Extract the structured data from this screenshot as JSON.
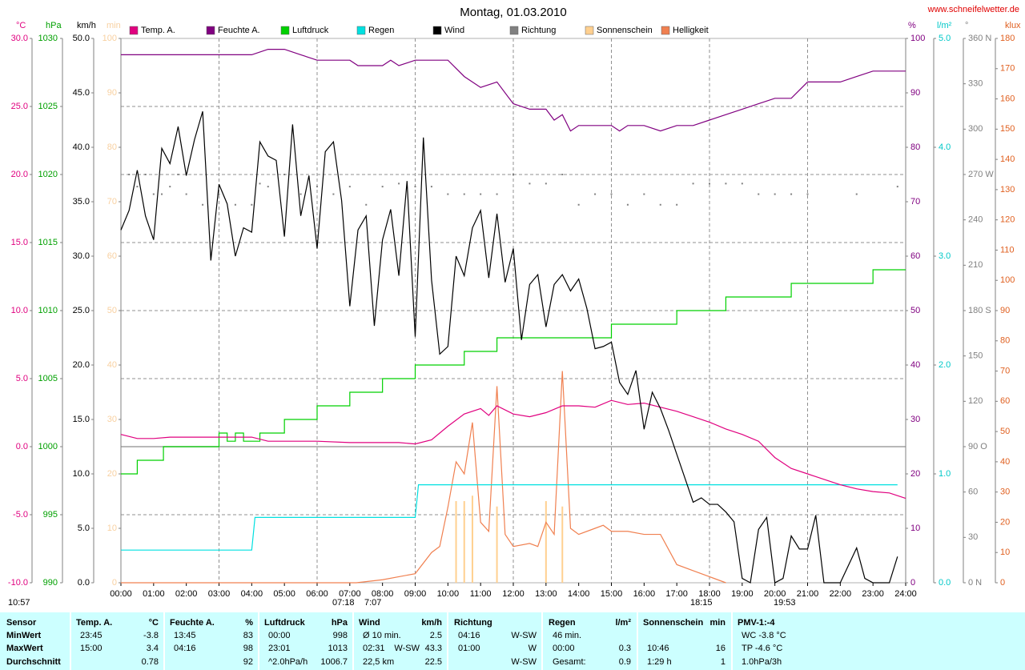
{
  "chart_data": {
    "type": "line",
    "title": "Montag, 01.03.2010",
    "source": "www.schneifelwetter.de",
    "xlim": [
      0,
      24
    ],
    "xticks": [
      {
        "value": 0,
        "label": "00:00"
      },
      {
        "value": 1,
        "label": "01:00"
      },
      {
        "value": 2,
        "label": "02:00"
      },
      {
        "value": 3,
        "label": "03:00"
      },
      {
        "value": 4,
        "label": "04:00"
      },
      {
        "value": 5,
        "label": "05:00"
      },
      {
        "value": 6,
        "label": "06:00"
      },
      {
        "value": 7,
        "label": "07:00"
      },
      {
        "value": 8,
        "label": "08:00"
      },
      {
        "value": 9,
        "label": "09:00"
      },
      {
        "value": 10,
        "label": "10:00"
      },
      {
        "value": 11,
        "label": "11:00"
      },
      {
        "value": 12,
        "label": "12:00"
      },
      {
        "value": 13,
        "label": "13:00"
      },
      {
        "value": 14,
        "label": "14:00"
      },
      {
        "value": 15,
        "label": "15:00"
      },
      {
        "value": 16,
        "label": "16:00"
      },
      {
        "value": 17,
        "label": "17:00"
      },
      {
        "value": 18,
        "label": "18:00"
      },
      {
        "value": 19,
        "label": "19:00"
      },
      {
        "value": 20,
        "label": "20:00"
      },
      {
        "value": 21,
        "label": "21:00"
      },
      {
        "value": 22,
        "label": "22:00"
      },
      {
        "value": 23,
        "label": "23:00"
      },
      {
        "value": 24,
        "label": "24:00"
      }
    ],
    "grid": {
      "axis": 0,
      "x_every": 3,
      "zero_line": true
    },
    "axes": [
      {
        "unit": "°C",
        "color": "#e0007f",
        "lim": [
          -10,
          30
        ],
        "ticks": [
          {
            "value": 30,
            "label": "30.0"
          },
          {
            "value": 25,
            "label": "25.0"
          },
          {
            "value": 20,
            "label": "20.0"
          },
          {
            "value": 15,
            "label": "15.0"
          },
          {
            "value": 10,
            "label": "10.0"
          },
          {
            "value": 5,
            "label": "5.0"
          },
          {
            "value": 0,
            "label": "0.0"
          },
          {
            "value": -5,
            "label": "-5.0"
          },
          {
            "value": -10,
            "label": "-10.0"
          }
        ]
      },
      {
        "unit": "hPa",
        "color": "#00a000",
        "lim": [
          990,
          1030
        ],
        "ticks": [
          1030,
          1025,
          1020,
          1015,
          1010,
          1005,
          1000,
          995,
          990
        ]
      },
      {
        "unit": "km/h",
        "color": "#000000",
        "lim": [
          0,
          50
        ],
        "ticks": [
          {
            "value": 50,
            "label": "50.0"
          },
          {
            "value": 45,
            "label": "45.0"
          },
          {
            "value": 40,
            "label": "40.0"
          },
          {
            "value": 35,
            "label": "35.0"
          },
          {
            "value": 30,
            "label": "30.0"
          },
          {
            "value": 25,
            "label": "25.0"
          },
          {
            "value": 20,
            "label": "20.0"
          },
          {
            "value": 15,
            "label": "15.0"
          },
          {
            "value": 10,
            "label": "10.0"
          },
          {
            "value": 5,
            "label": "5.0"
          },
          {
            "value": 0,
            "label": "0.0"
          }
        ]
      },
      {
        "unit": "min",
        "color": "#f8d0a0",
        "lim": [
          0,
          100
        ],
        "ticks": [
          100,
          90,
          80,
          70,
          60,
          50,
          40,
          30,
          20,
          10,
          0
        ]
      },
      {
        "unit": "%",
        "color": "#800080",
        "lim": [
          0,
          100
        ],
        "ticks": [
          100,
          90,
          80,
          70,
          60,
          50,
          40,
          30,
          20,
          10,
          0
        ]
      },
      {
        "unit": "l/m²",
        "color": "#00c8c8",
        "lim": [
          0,
          5
        ],
        "ticks": [
          {
            "value": 5,
            "label": "5.0"
          },
          {
            "value": 4,
            "label": "4.0"
          },
          {
            "value": 3,
            "label": "3.0"
          },
          {
            "value": 2,
            "label": "2.0"
          },
          {
            "value": 1,
            "label": "1.0"
          },
          {
            "value": 0,
            "label": "0.0"
          }
        ]
      },
      {
        "unit": "°",
        "color": "#808080",
        "lim": [
          0,
          360
        ],
        "ticks": [
          {
            "value": 360,
            "label": "360 N"
          },
          330,
          300,
          {
            "value": 270,
            "label": "270 W"
          },
          240,
          210,
          {
            "value": 180,
            "label": "180 S"
          },
          150,
          120,
          {
            "value": 90,
            "label": "90 O"
          },
          60,
          30,
          {
            "value": 0,
            "label": "0 N"
          }
        ]
      },
      {
        "unit": "klux",
        "color": "#e06020",
        "lim": [
          0,
          180
        ],
        "ticks": [
          180,
          170,
          160,
          150,
          140,
          130,
          120,
          110,
          100,
          90,
          80,
          70,
          60,
          50,
          40,
          30,
          20,
          10,
          0
        ]
      }
    ],
    "series": [
      {
        "name": "Temp. A.",
        "color": "#e0007f",
        "axis": 0,
        "style": "line",
        "x": [
          0,
          0.5,
          1,
          1.5,
          2,
          3,
          4,
          4.5,
          5,
          6,
          7,
          8,
          8.5,
          9,
          9.5,
          10,
          10.5,
          11,
          11.25,
          11.5,
          12,
          12.5,
          13,
          13.5,
          14,
          14.5,
          15,
          15.5,
          16,
          16.5,
          17,
          17.5,
          18,
          18.5,
          19,
          19.5,
          20,
          20.5,
          21,
          21.5,
          22,
          22.5,
          23,
          23.5,
          24
        ],
        "values": [
          0.9,
          0.6,
          0.6,
          0.7,
          0.7,
          0.7,
          0.7,
          0.4,
          0.4,
          0.4,
          0.3,
          0.3,
          0.3,
          0.2,
          0.5,
          1.5,
          2.4,
          2.8,
          2.3,
          3.0,
          2.4,
          2.2,
          2.5,
          3.0,
          3.0,
          2.9,
          3.4,
          3.1,
          3.2,
          2.9,
          2.6,
          2.2,
          1.8,
          1.3,
          0.9,
          0.4,
          -0.8,
          -1.6,
          -2.0,
          -2.4,
          -2.8,
          -3.1,
          -3.3,
          -3.4,
          -3.8
        ]
      },
      {
        "name": "Feuchte A.",
        "color": "#800080",
        "axis": 4,
        "style": "line",
        "x": [
          0,
          4,
          4.5,
          5,
          5.5,
          6,
          7,
          7.25,
          8,
          8.25,
          8.5,
          9,
          10,
          10.5,
          11,
          11.5,
          12,
          12.5,
          13,
          13.25,
          13.5,
          13.75,
          14,
          15,
          15.25,
          15.5,
          16,
          16.5,
          17,
          17.5,
          18,
          18.5,
          19,
          19.5,
          20,
          20.5,
          21,
          22,
          22.5,
          23,
          24
        ],
        "values": [
          97,
          97,
          98,
          98,
          97,
          96,
          96,
          95,
          95,
          96,
          95,
          96,
          96,
          93,
          91,
          92,
          88,
          87,
          87,
          85,
          86,
          83,
          84,
          84,
          83,
          84,
          84,
          83,
          84,
          84,
          85,
          86,
          87,
          88,
          89,
          89,
          92,
          92,
          93,
          94,
          94
        ]
      },
      {
        "name": "Luftdruck",
        "color": "#00d000",
        "axis": 1,
        "style": "step",
        "x": [
          0,
          0.5,
          1.3,
          3,
          3.25,
          3.5,
          3.75,
          4.25,
          5,
          6,
          7,
          8,
          9,
          10.5,
          11.5,
          15,
          17,
          18.5,
          20.5,
          23,
          24
        ],
        "values": [
          998,
          999,
          1000,
          1001,
          1000.4,
          1001,
          1000.4,
          1001,
          1002,
          1003,
          1004,
          1005,
          1006,
          1007,
          1008,
          1009,
          1010,
          1011,
          1012,
          1013,
          1013
        ]
      },
      {
        "name": "Regen",
        "color": "#00e0e0",
        "axis": 5,
        "style": "line",
        "x": [
          0,
          4,
          4.1,
          9,
          9.1,
          23.75
        ],
        "values": [
          0.3,
          0.3,
          0.6,
          0.6,
          0.9,
          0.9
        ]
      },
      {
        "name": "Wind",
        "color": "#000000",
        "axis": 2,
        "style": "line",
        "x": [
          0,
          0.25,
          0.5,
          0.75,
          1,
          1.25,
          1.5,
          1.75,
          2,
          2.25,
          2.5,
          2.75,
          3,
          3.25,
          3.5,
          3.75,
          4,
          4.25,
          4.5,
          4.75,
          5,
          5.25,
          5.5,
          5.75,
          6,
          6.25,
          6.5,
          6.75,
          7,
          7.25,
          7.5,
          7.75,
          8,
          8.25,
          8.5,
          8.75,
          9,
          9.25,
          9.5,
          9.75,
          10,
          10.25,
          10.5,
          10.75,
          11,
          11.25,
          11.5,
          11.75,
          12,
          12.25,
          12.5,
          12.75,
          13,
          13.25,
          13.5,
          13.75,
          14,
          14.25,
          14.5,
          14.75,
          15,
          15.25,
          15.5,
          15.75,
          16,
          16.25,
          16.5,
          16.75,
          17,
          17.25,
          17.5,
          17.75,
          18,
          18.25,
          18.5,
          18.75,
          19,
          19.25,
          19.5,
          19.75,
          20,
          20.25,
          20.5,
          20.75,
          21,
          21.25,
          21.5,
          22,
          22.5,
          22.75,
          23,
          23.5,
          23.75
        ],
        "values": [
          32.4,
          34.2,
          37.9,
          33.7,
          31.5,
          39.9,
          38.5,
          41.9,
          37.4,
          40.7,
          43.3,
          29.6,
          36.6,
          34.8,
          30.0,
          32.6,
          32.2,
          40.5,
          39.2,
          38.8,
          31.8,
          42.1,
          33.7,
          37.4,
          30.7,
          39.6,
          40.5,
          35.1,
          25.4,
          32.4,
          33.7,
          23.6,
          31.5,
          34.3,
          28.2,
          36.9,
          22.6,
          40.9,
          27.8,
          21.0,
          21.7,
          30.0,
          28.2,
          32.6,
          34.2,
          28.0,
          33.9,
          27.6,
          30.7,
          22.3,
          27.4,
          28.3,
          23.5,
          27.4,
          28.3,
          26.8,
          27.9,
          25.2,
          21.5,
          21.7,
          22.1,
          18.4,
          17.3,
          19.5,
          14.1,
          17.5,
          16.0,
          14.0,
          11.8,
          9.6,
          7.4,
          7.8,
          7.2,
          7.2,
          6.5,
          5.6,
          0.4,
          0,
          4.9,
          6.0,
          0,
          0.4,
          4.3,
          3.1,
          3.1,
          6.2,
          0,
          0,
          3.2,
          0.4,
          0,
          0,
          2.4
        ]
      },
      {
        "name": "Richtung",
        "color": "#808080",
        "axis": 6,
        "style": "dots",
        "x": [
          0.25,
          0.5,
          0.75,
          1,
          1.25,
          1.5,
          1.75,
          2,
          2.5,
          3,
          3.5,
          4,
          4.25,
          4.5,
          5,
          5.5,
          6,
          6.5,
          7,
          7.5,
          8,
          8.5,
          9,
          9.5,
          10,
          10.5,
          11,
          11.5,
          12,
          12.5,
          13,
          13.5,
          14,
          14.5,
          15,
          15.5,
          16,
          16.5,
          17,
          17.5,
          18,
          18.5,
          19,
          19.5,
          20,
          20.5,
          21,
          22.5,
          23.75
        ],
        "values": [
          270,
          262,
          270,
          257,
          257,
          262,
          270,
          257,
          250,
          257,
          250,
          250,
          264,
          262,
          270,
          257,
          262,
          257,
          262,
          250,
          262,
          264,
          262,
          262,
          257,
          257,
          257,
          257,
          270,
          264,
          264,
          270,
          250,
          257,
          257,
          250,
          257,
          250,
          250,
          264,
          264,
          264,
          264,
          257,
          257,
          257,
          257,
          257,
          262
        ]
      },
      {
        "name": "Sonnenschein",
        "color": "#ffd090",
        "axis": 3,
        "style": "bars",
        "x": [
          10.25,
          10.5,
          10.75,
          11.5,
          13,
          13.5
        ],
        "values": [
          15,
          15,
          16,
          14,
          15,
          14
        ]
      },
      {
        "name": "Helligkeit",
        "color": "#f08050",
        "axis": 7,
        "style": "line",
        "x": [
          0,
          7.2,
          8,
          9,
          9.5,
          9.75,
          10,
          10.25,
          10.5,
          10.75,
          11,
          11.25,
          11.5,
          11.75,
          12,
          12.5,
          12.75,
          13,
          13.25,
          13.5,
          13.75,
          14,
          14.5,
          14.75,
          15,
          15.5,
          16,
          16.5,
          17,
          17.5,
          18,
          18.5
        ],
        "values": [
          0,
          0,
          1,
          3,
          10,
          12,
          25,
          40,
          36,
          53,
          20,
          17,
          65,
          16,
          12,
          13,
          12,
          20,
          16,
          70,
          18,
          16,
          18,
          19,
          17,
          17,
          16,
          16,
          6,
          4,
          2,
          0
        ]
      }
    ],
    "annotations": [
      "10:57",
      "07:18",
      "7:07",
      "18:15",
      "19:53"
    ],
    "table": {
      "header": [
        {
          "l": "Sensor"
        },
        {
          "l": "Temp. A.",
          "r": "°C"
        },
        {
          "l": "Feuchte A.",
          "r": "%"
        },
        {
          "l": "Luftdruck",
          "r": "hPa"
        },
        {
          "l": "Wind",
          "r": "km/h"
        },
        {
          "l": "Richtung"
        },
        {
          "l": "Regen",
          "r": "l/m²"
        },
        {
          "l": "Sonnenschein",
          "r": "min"
        },
        {
          "l": "PMV-1:-4"
        }
      ],
      "rows": [
        [
          {
            "l": "MinWert"
          },
          {
            "l": "23:45",
            "r": "-3.8"
          },
          {
            "l": "13:45",
            "r": "83"
          },
          {
            "l": "00:00",
            "r": "998"
          },
          {
            "l": "Ø 10 min.",
            "r": "2.5"
          },
          {
            "l": "04:16",
            "r": "W-SW"
          },
          {
            "l": "46 min."
          },
          {},
          {
            "l": "WC -3.8 °C"
          }
        ],
        [
          {
            "l": "MaxWert"
          },
          {
            "l": "15:00",
            "r": "3.4"
          },
          {
            "l": "04:16",
            "r": "98"
          },
          {
            "l": "23:01",
            "r": "1013"
          },
          {
            "l": "02:31",
            "m": "W-SW",
            "r": "43.3"
          },
          {
            "l": "01:00",
            "r": "W"
          },
          {
            "l": "00:00",
            "r": "0.3"
          },
          {
            "l": "10:46",
            "r": "16"
          },
          {
            "l": "TP -4.6 °C"
          }
        ],
        [
          {
            "l": "Durchschnitt"
          },
          {
            "r": "0.78"
          },
          {
            "r": "92"
          },
          {
            "l": "^2.0hPa/h",
            "r": "1006.7"
          },
          {
            "l": "22,5 km",
            "r": "22.5"
          },
          {
            "r": "W-SW"
          },
          {
            "l": "Gesamt:",
            "r": "0.9"
          },
          {
            "l": "1:29 h",
            "r": "1"
          },
          {
            "l": "1.0hPa/3h"
          }
        ]
      ]
    }
  }
}
